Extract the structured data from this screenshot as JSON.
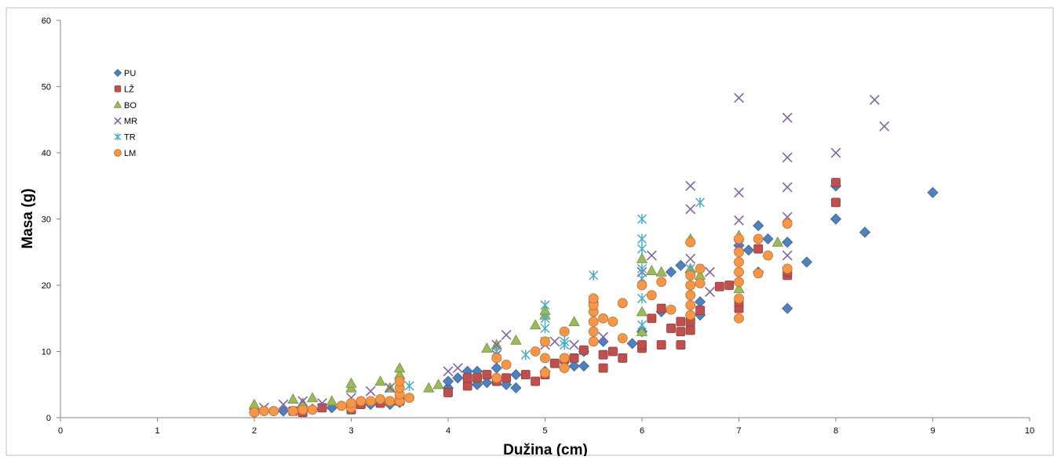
{
  "chart_data": {
    "type": "scatter",
    "title": "",
    "xlabel": "Dužina (cm)",
    "ylabel": "Masa (g)",
    "xlim": [
      0,
      10
    ],
    "ylim": [
      0,
      60
    ],
    "x_ticks": [
      0,
      1,
      2,
      3,
      4,
      5,
      6,
      7,
      8,
      9,
      10
    ],
    "y_ticks": [
      0,
      10,
      20,
      30,
      40,
      50,
      60
    ],
    "grid": false,
    "legend_position": "top-left",
    "series": [
      {
        "name": "PU",
        "marker": "diamond",
        "color": "#4F81BD",
        "points": [
          [
            2,
            0.8
          ],
          [
            2.3,
            1.0
          ],
          [
            2.5,
            1.0
          ],
          [
            2.6,
            1.3
          ],
          [
            2.8,
            1.5
          ],
          [
            3,
            1.5
          ],
          [
            3.2,
            2.0
          ],
          [
            3.4,
            2.0
          ],
          [
            3.5,
            2.3
          ],
          [
            4,
            4.5
          ],
          [
            4,
            5.5
          ],
          [
            4.1,
            6.0
          ],
          [
            4.2,
            7.0
          ],
          [
            4.3,
            5.0
          ],
          [
            4.3,
            7.0
          ],
          [
            4.4,
            5.3
          ],
          [
            4.5,
            7.5
          ],
          [
            4.6,
            5.0
          ],
          [
            4.7,
            4.5
          ],
          [
            4.7,
            6.5
          ],
          [
            5,
            7.0
          ],
          [
            5.2,
            7.5
          ],
          [
            5.3,
            7.8
          ],
          [
            5.4,
            7.8
          ],
          [
            5.4,
            10.0
          ],
          [
            5.6,
            11.5
          ],
          [
            5.9,
            11.2
          ],
          [
            6,
            13.0
          ],
          [
            6.2,
            16.0
          ],
          [
            6.3,
            22.0
          ],
          [
            6.4,
            23.0
          ],
          [
            6.5,
            22.0
          ],
          [
            6.6,
            15.5
          ],
          [
            6.6,
            17.5
          ],
          [
            7,
            26.0
          ],
          [
            7.1,
            25.3
          ],
          [
            7.2,
            22.0
          ],
          [
            7.2,
            29.0
          ],
          [
            7.3,
            27.0
          ],
          [
            7.5,
            16.5
          ],
          [
            7.5,
            26.5
          ],
          [
            7.7,
            23.5
          ],
          [
            8,
            30.0
          ],
          [
            8,
            35.0
          ],
          [
            8.3,
            28.0
          ],
          [
            9,
            34.0
          ]
        ]
      },
      {
        "name": "LŽ",
        "marker": "square",
        "color": "#C0504D",
        "points": [
          [
            2,
            1.0
          ],
          [
            2.4,
            1.0
          ],
          [
            2.5,
            0.8
          ],
          [
            2.7,
            1.5
          ],
          [
            3,
            1.2
          ],
          [
            3.1,
            2.0
          ],
          [
            3.3,
            2.2
          ],
          [
            3.5,
            2.5
          ],
          [
            4,
            3.8
          ],
          [
            4.2,
            4.8
          ],
          [
            4.2,
            6.0
          ],
          [
            4.3,
            6.0
          ],
          [
            4.4,
            6.5
          ],
          [
            4.5,
            5.5
          ],
          [
            4.6,
            6.0
          ],
          [
            4.8,
            6.5
          ],
          [
            4.9,
            5.5
          ],
          [
            5,
            6.5
          ],
          [
            5.1,
            8.2
          ],
          [
            5.2,
            8.8
          ],
          [
            5.3,
            9.0
          ],
          [
            5.4,
            10.2
          ],
          [
            5.6,
            7.5
          ],
          [
            5.6,
            9.5
          ],
          [
            5.7,
            10.0
          ],
          [
            5.8,
            9.0
          ],
          [
            6,
            10.5
          ],
          [
            6,
            11.0
          ],
          [
            6.1,
            15.0
          ],
          [
            6.2,
            11.0
          ],
          [
            6.2,
            16.5
          ],
          [
            6.3,
            13.5
          ],
          [
            6.4,
            11.0
          ],
          [
            6.4,
            13.0
          ],
          [
            6.4,
            14.5
          ],
          [
            6.5,
            13.2
          ],
          [
            6.5,
            14.5
          ],
          [
            6.6,
            16.2
          ],
          [
            6.8,
            19.8
          ],
          [
            6.9,
            20.0
          ],
          [
            7,
            16.5
          ],
          [
            7,
            17.5
          ],
          [
            7.2,
            25.5
          ],
          [
            7.5,
            21.5
          ],
          [
            7.5,
            22.0
          ],
          [
            8,
            32.5
          ],
          [
            8,
            35.5
          ]
        ]
      },
      {
        "name": "BO",
        "marker": "triangle",
        "color": "#9BBB59",
        "points": [
          [
            2,
            2.0
          ],
          [
            2.4,
            2.8
          ],
          [
            2.5,
            2.2
          ],
          [
            2.6,
            3.0
          ],
          [
            2.8,
            2.5
          ],
          [
            3,
            4.5
          ],
          [
            3,
            5.2
          ],
          [
            3.3,
            5.5
          ],
          [
            3.4,
            4.5
          ],
          [
            3.5,
            6.5
          ],
          [
            3.5,
            7.5
          ],
          [
            3.8,
            4.5
          ],
          [
            3.9,
            5.0
          ],
          [
            4.4,
            10.5
          ],
          [
            4.5,
            11.0
          ],
          [
            4.7,
            11.7
          ],
          [
            4.9,
            14.0
          ],
          [
            5,
            15.5
          ],
          [
            5,
            16.2
          ],
          [
            5.3,
            14.5
          ],
          [
            5.5,
            18.0
          ],
          [
            6,
            13.0
          ],
          [
            6,
            16.0
          ],
          [
            6,
            24.0
          ],
          [
            6.1,
            22.2
          ],
          [
            6.2,
            22.0
          ],
          [
            6.5,
            22.5
          ],
          [
            6.5,
            27.0
          ],
          [
            6.6,
            21.5
          ],
          [
            7,
            19.5
          ],
          [
            7,
            27.5
          ],
          [
            7.4,
            26.5
          ]
        ]
      },
      {
        "name": "MR",
        "marker": "x",
        "color": "#8064A2",
        "points": [
          [
            2.1,
            1.5
          ],
          [
            2.3,
            2.0
          ],
          [
            2.5,
            2.5
          ],
          [
            2.7,
            2.2
          ],
          [
            3,
            3.0
          ],
          [
            3.2,
            4.0
          ],
          [
            3.4,
            4.5
          ],
          [
            4,
            7.0
          ],
          [
            4.1,
            7.5
          ],
          [
            4.5,
            11.0
          ],
          [
            4.5,
            9.5
          ],
          [
            4.6,
            12.5
          ],
          [
            5,
            11.0
          ],
          [
            5.1,
            11.5
          ],
          [
            5.3,
            11.0
          ],
          [
            5.6,
            12.2
          ],
          [
            6,
            22.0
          ],
          [
            6.1,
            24.5
          ],
          [
            6.5,
            24.0
          ],
          [
            6.5,
            31.5
          ],
          [
            6.5,
            35.0
          ],
          [
            6.7,
            19.0
          ],
          [
            6.7,
            22.0
          ],
          [
            7,
            26.0
          ],
          [
            7,
            29.8
          ],
          [
            7,
            34.0
          ],
          [
            7,
            48.3
          ],
          [
            7.5,
            24.5
          ],
          [
            7.5,
            30.3
          ],
          [
            7.5,
            34.8
          ],
          [
            7.5,
            39.3
          ],
          [
            7.5,
            45.3
          ],
          [
            8,
            40.0
          ],
          [
            8.4,
            48.0
          ],
          [
            8.5,
            44.0
          ]
        ]
      },
      {
        "name": "TR",
        "marker": "star",
        "color": "#4BACC6",
        "points": [
          [
            3.6,
            4.8
          ],
          [
            4.5,
            10.0
          ],
          [
            4.8,
            9.5
          ],
          [
            5,
            11.5
          ],
          [
            5,
            13.5
          ],
          [
            5,
            15.0
          ],
          [
            5,
            17.0
          ],
          [
            5.2,
            11.0
          ],
          [
            5.2,
            11.5
          ],
          [
            5.5,
            21.5
          ],
          [
            6,
            14.0
          ],
          [
            6,
            18.0
          ],
          [
            6,
            21.0
          ],
          [
            6,
            22.5
          ],
          [
            6,
            25.5
          ],
          [
            6,
            27.0
          ],
          [
            6,
            30.0
          ],
          [
            6.5,
            22.5
          ],
          [
            6.6,
            32.5
          ]
        ]
      },
      {
        "name": "LM",
        "marker": "circle",
        "color": "#F79646",
        "points": [
          [
            2,
            0.8
          ],
          [
            2.1,
            1.0
          ],
          [
            2.2,
            1.0
          ],
          [
            2.4,
            1.0
          ],
          [
            2.5,
            1.2
          ],
          [
            2.6,
            1.2
          ],
          [
            2.9,
            1.8
          ],
          [
            3,
            1.5
          ],
          [
            3,
            2.2
          ],
          [
            3.1,
            2.5
          ],
          [
            3.2,
            2.5
          ],
          [
            3.3,
            2.8
          ],
          [
            3.4,
            2.5
          ],
          [
            3.5,
            2.5
          ],
          [
            3.5,
            3.5
          ],
          [
            3.5,
            4.5
          ],
          [
            3.5,
            5.5
          ],
          [
            3.6,
            3.0
          ],
          [
            4.5,
            6.0
          ],
          [
            4.5,
            9.0
          ],
          [
            4.6,
            8.0
          ],
          [
            4.9,
            10.0
          ],
          [
            5,
            6.8
          ],
          [
            5,
            9.0
          ],
          [
            5,
            11.5
          ],
          [
            5.2,
            7.5
          ],
          [
            5.2,
            9.0
          ],
          [
            5.2,
            13.0
          ],
          [
            5.5,
            11.5
          ],
          [
            5.5,
            13.0
          ],
          [
            5.5,
            14.5
          ],
          [
            5.5,
            16.0
          ],
          [
            5.5,
            17.0
          ],
          [
            5.5,
            18.0
          ],
          [
            5.6,
            15.0
          ],
          [
            5.7,
            14.5
          ],
          [
            5.8,
            12.0
          ],
          [
            5.8,
            17.3
          ],
          [
            6,
            20.0
          ],
          [
            6.1,
            18.5
          ],
          [
            6.2,
            20.5
          ],
          [
            6.3,
            16.3
          ],
          [
            6.5,
            15.5
          ],
          [
            6.5,
            17.0
          ],
          [
            6.5,
            18.5
          ],
          [
            6.5,
            20.0
          ],
          [
            6.5,
            21.5
          ],
          [
            6.5,
            26.5
          ],
          [
            6.6,
            20.3
          ],
          [
            6.6,
            22.5
          ],
          [
            7,
            15.0
          ],
          [
            7,
            18.0
          ],
          [
            7,
            20.5
          ],
          [
            7,
            22.0
          ],
          [
            7,
            23.5
          ],
          [
            7,
            25.0
          ],
          [
            7,
            27.0
          ],
          [
            7.2,
            21.8
          ],
          [
            7.2,
            27.0
          ],
          [
            7.3,
            24.5
          ],
          [
            7.5,
            22.5
          ],
          [
            7.5,
            29.3
          ]
        ]
      }
    ]
  }
}
